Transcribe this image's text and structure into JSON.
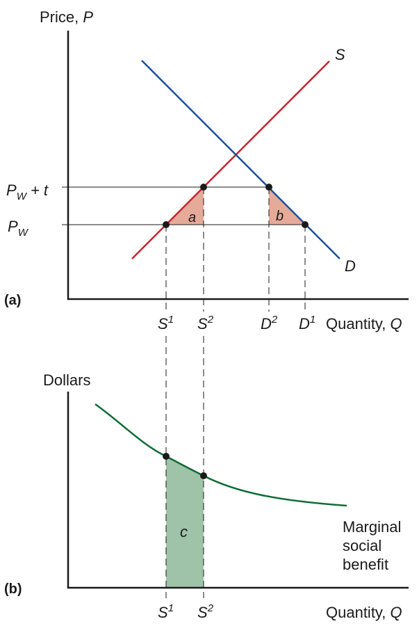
{
  "colors": {
    "supply": "#c0262d",
    "demand": "#1a4f9c",
    "mb_curve": "#0e6b34",
    "triangle_fill": "#e6aa99",
    "area_c_fill": "#9ec3a8"
  },
  "chart_data": [
    {
      "type": "line",
      "panel_label": "(a)",
      "ylabel": {
        "text": "Price, ",
        "var": "P"
      },
      "xlabel": {
        "text": "Quantity, ",
        "var": "Q"
      },
      "price_labels": {
        "pw_t": {
          "sub": "W",
          "rest": " + t"
        },
        "pw": {
          "sub": "W"
        },
        "base": "P"
      },
      "supply_label": "S",
      "demand_label": "D",
      "area_labels": [
        "a",
        "b"
      ],
      "tick_labels": [
        {
          "base": "S",
          "sup": "1"
        },
        {
          "base": "S",
          "sup": "2"
        },
        {
          "base": "D",
          "sup": "2"
        },
        {
          "base": "D",
          "sup": "1"
        }
      ]
    },
    {
      "type": "line",
      "panel_label": "(b)",
      "ylabel": "Dollars",
      "xlabel": {
        "text": "Quantity, ",
        "var": "Q"
      },
      "area_label": "c",
      "curve_label": [
        "Marginal",
        "social",
        "benefit"
      ],
      "tick_labels": [
        {
          "base": "S",
          "sup": "1"
        },
        {
          "base": "S",
          "sup": "2"
        }
      ]
    }
  ]
}
